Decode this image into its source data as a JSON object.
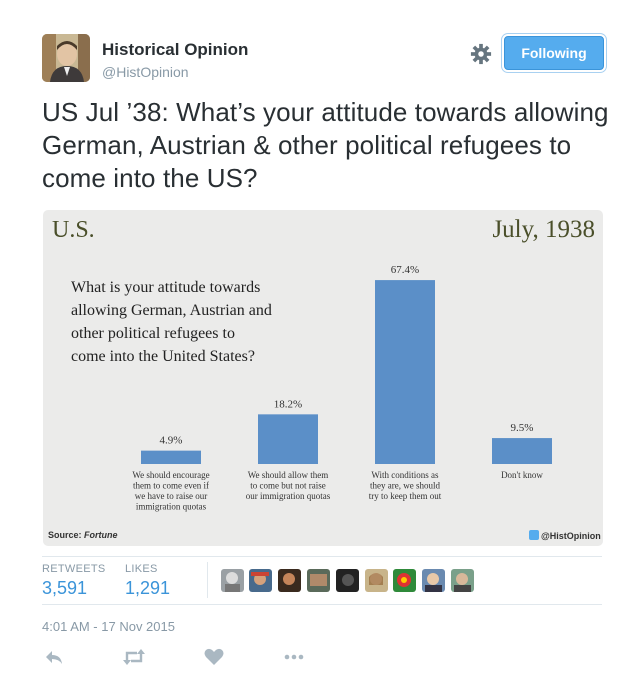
{
  "author": {
    "name": "Historical Opinion",
    "handle": "@HistOpinion",
    "follow_label": "Following"
  },
  "tweet": {
    "text": "US Jul ’38: What’s your attitude towards allowing German, Austrian & other political refugees to come into the US?",
    "timestamp": "4:01 AM - 17 Nov 2015"
  },
  "stats": {
    "retweets_label": "RETWEETS",
    "retweets": "3,591",
    "likes_label": "LIKES",
    "likes": "1,291"
  },
  "icons": [
    "gear-icon",
    "reply-icon",
    "retweet-icon",
    "like-icon",
    "more-icon"
  ],
  "colors": {
    "accent": "#55acee",
    "link": "#3b94d9",
    "bar": "#5b8fc8",
    "muted": "#8899a6"
  },
  "chart_data": {
    "type": "bar",
    "corner_left": "U.S.",
    "corner_right": "July, 1938",
    "title": "What is your attitude towards allowing German, Austrian and other political refugees to come into the United States?",
    "categories": [
      "We should encourage them to come even if we have to raise our immigration quotas",
      "We should allow them to come but not raise our immigration quotas",
      "With conditions as they are, we should try to keep them out",
      "Don't know"
    ],
    "values": [
      4.9,
      18.2,
      67.4,
      9.5
    ],
    "value_labels": [
      "4.9%",
      "18.2%",
      "67.4%",
      "9.5%"
    ],
    "ylim": [
      0,
      70
    ],
    "source_prefix": "Source: ",
    "source_name": "Fortune",
    "watermark": "@HistOpinion"
  }
}
